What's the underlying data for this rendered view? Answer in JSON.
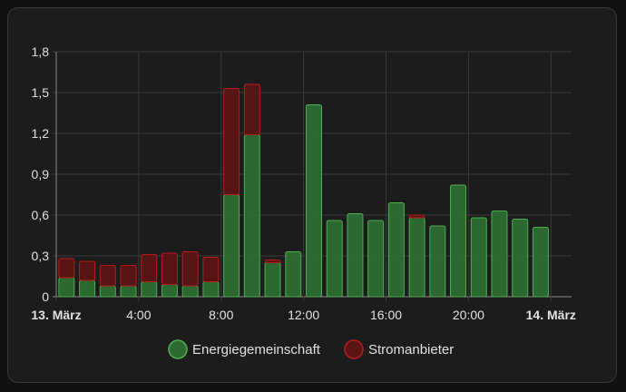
{
  "chart_data": {
    "type": "bar",
    "stacked": true,
    "x_tick_labels": [
      {
        "hour": 0,
        "label": "13. März",
        "bold": true
      },
      {
        "hour": 4,
        "label": "4:00",
        "bold": false
      },
      {
        "hour": 8,
        "label": "8:00",
        "bold": false
      },
      {
        "hour": 12,
        "label": "12:00",
        "bold": false
      },
      {
        "hour": 16,
        "label": "16:00",
        "bold": false
      },
      {
        "hour": 20,
        "label": "20:00",
        "bold": false
      },
      {
        "hour": 24,
        "label": "14. März",
        "bold": true
      }
    ],
    "y_ticks": [
      0,
      0.3,
      0.6,
      0.9,
      1.2,
      1.5,
      1.8
    ],
    "y_tick_labels": [
      "0",
      "0,3",
      "0,6",
      "0,9",
      "1,2",
      "1,5",
      "1,8"
    ],
    "ylim": [
      0,
      1.8
    ],
    "xlim": [
      -0.5,
      24.5
    ],
    "grid": true,
    "legend_position": "bottom",
    "hours": [
      0,
      1,
      2,
      3,
      4,
      5,
      6,
      7,
      8,
      9,
      10,
      11,
      12,
      13,
      14,
      15,
      16,
      17,
      18,
      19,
      20,
      21,
      22,
      23
    ],
    "series": [
      {
        "name": "Energiegemeinschaft",
        "color": "#43a047",
        "values": [
          0.14,
          0.12,
          0.08,
          0.08,
          0.11,
          0.09,
          0.08,
          0.11,
          0.75,
          1.19,
          0.25,
          0.33,
          1.41,
          0.56,
          0.61,
          0.56,
          0.69,
          0.58,
          0.52,
          0.82,
          0.58,
          0.63,
          0.57,
          0.51
        ]
      },
      {
        "name": "Stromanbieter",
        "color": "#b71c1c",
        "values": [
          0.14,
          0.14,
          0.15,
          0.15,
          0.2,
          0.23,
          0.25,
          0.18,
          0.78,
          0.37,
          0.02,
          0.0,
          0.0,
          0.0,
          0.0,
          0.0,
          0.0,
          0.02,
          0.0,
          0.0,
          0.0,
          0.0,
          0.0,
          0.0
        ]
      }
    ]
  }
}
